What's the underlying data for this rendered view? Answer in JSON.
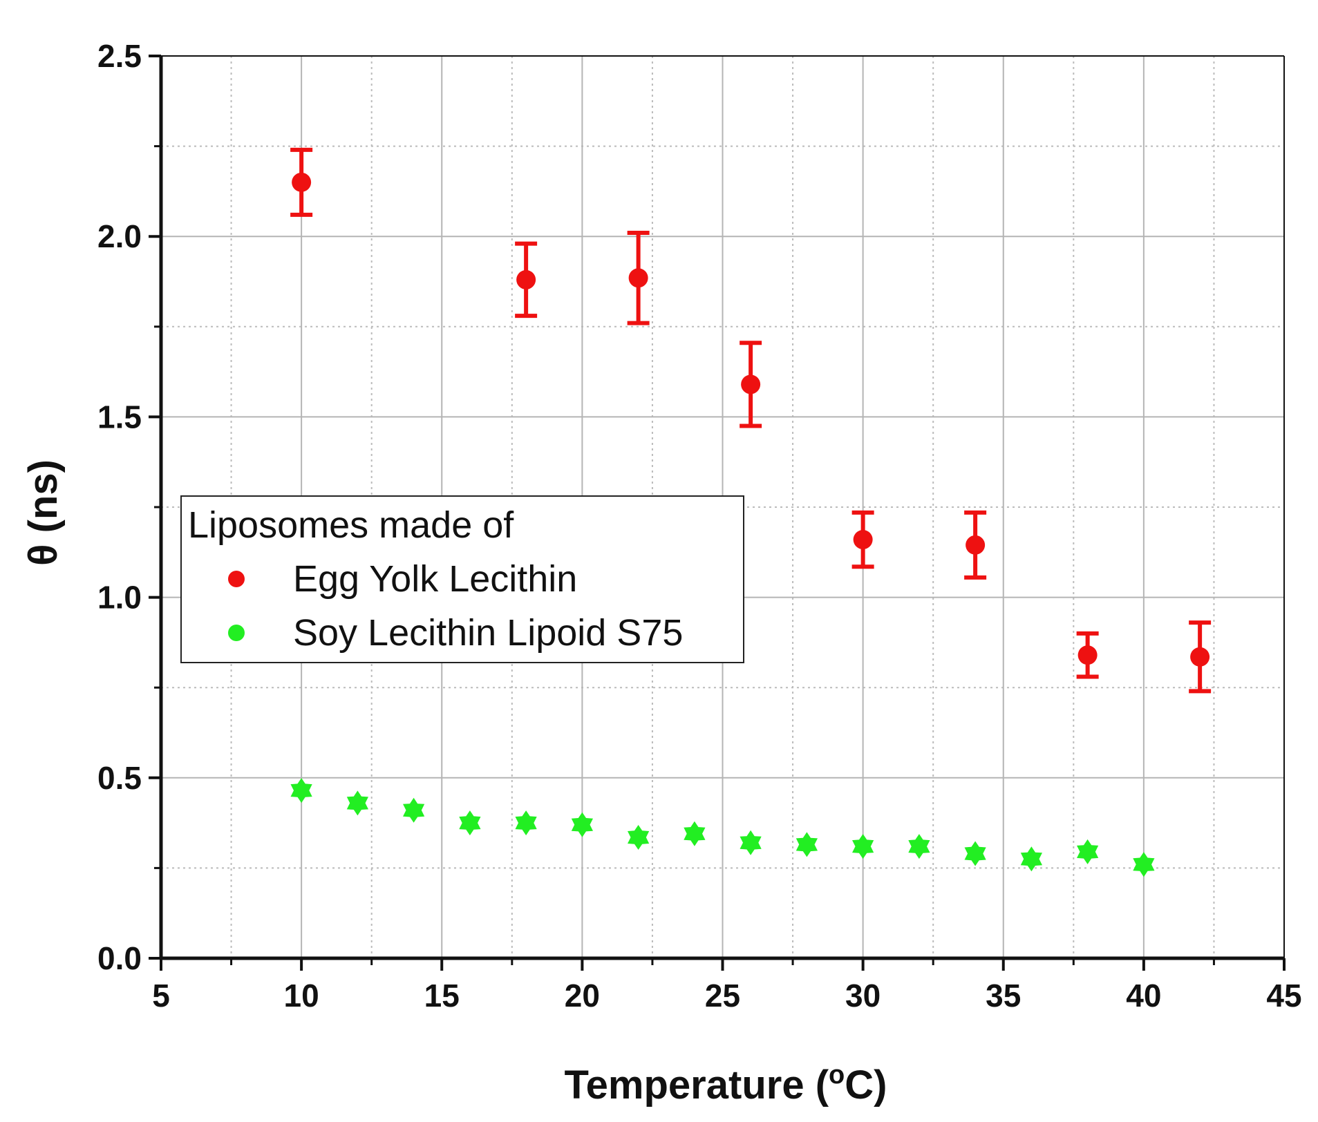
{
  "chart_data": {
    "type": "scatter",
    "title": "",
    "xlabel": "Temperature (",
    "xlabel_sup": "o",
    "xlabel_unit": "C)",
    "ylabel": "θ (ns)",
    "xlim": [
      5,
      45
    ],
    "ylim": [
      0.0,
      2.5
    ],
    "x_ticks": [
      5,
      10,
      15,
      20,
      25,
      30,
      35,
      40,
      45
    ],
    "x_tick_labels": [
      "5",
      "10",
      "15",
      "20",
      "25",
      "30",
      "35",
      "40",
      "45"
    ],
    "y_ticks": [
      0.0,
      0.5,
      1.0,
      1.5,
      2.0,
      2.5
    ],
    "y_tick_labels": [
      "0.0",
      "0.5",
      "1.0",
      "1.5",
      "2.0",
      "2.5"
    ],
    "grid": true,
    "legend": {
      "title": "Liposomes made of",
      "placement": "center-left"
    },
    "series": [
      {
        "name": "Egg Yolk Lecithin",
        "color": "#ee1111",
        "marker": "circle",
        "x": [
          10,
          18,
          22,
          26,
          30,
          34,
          38,
          42
        ],
        "y": [
          2.15,
          1.88,
          1.885,
          1.59,
          1.16,
          1.145,
          0.84,
          0.835
        ],
        "error": [
          0.09,
          0.1,
          0.125,
          0.115,
          0.075,
          0.09,
          0.06,
          0.095
        ]
      },
      {
        "name": "Soy Lecithin Lipoid S75",
        "color": "#22ee22",
        "marker": "hexagram",
        "x": [
          10,
          12,
          14,
          16,
          18,
          20,
          22,
          24,
          26,
          28,
          30,
          32,
          34,
          36,
          38,
          40
        ],
        "y": [
          0.465,
          0.43,
          0.41,
          0.375,
          0.375,
          0.37,
          0.335,
          0.345,
          0.32,
          0.315,
          0.31,
          0.31,
          0.29,
          0.275,
          0.295,
          0.26
        ]
      }
    ]
  }
}
